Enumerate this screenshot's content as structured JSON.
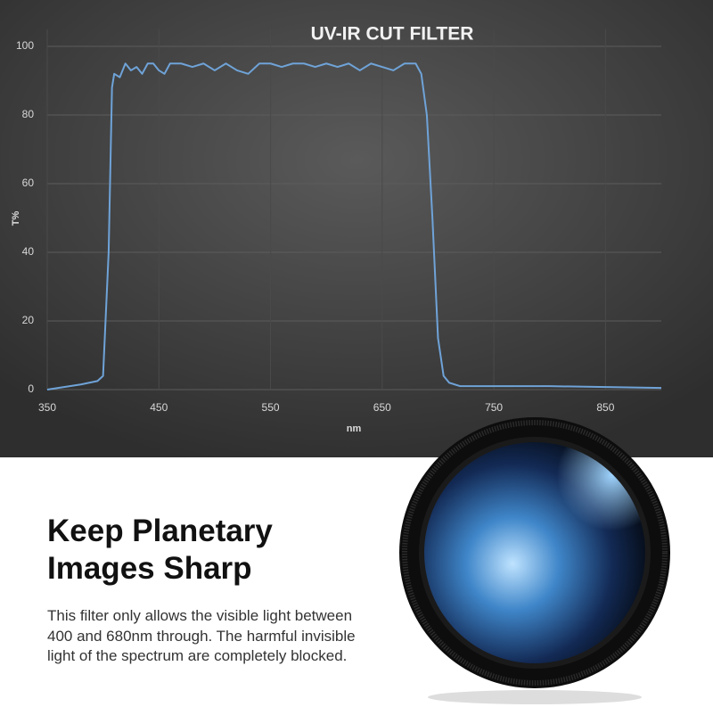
{
  "chart_data": {
    "type": "line",
    "title": "UV-IR CUT FILTER",
    "x_label": "nm",
    "y_label": "T%",
    "x": [
      350,
      380,
      395,
      400,
      405,
      408,
      410,
      415,
      420,
      425,
      430,
      435,
      440,
      445,
      450,
      455,
      460,
      470,
      480,
      490,
      500,
      510,
      520,
      530,
      540,
      550,
      560,
      570,
      580,
      590,
      600,
      610,
      620,
      630,
      640,
      650,
      660,
      670,
      680,
      685,
      690,
      695,
      700,
      705,
      710,
      720,
      750,
      800,
      900
    ],
    "series": [
      {
        "name": "T%",
        "color": "#6fa3d8",
        "values": [
          0,
          1.5,
          2.5,
          4,
          40,
          88,
          92,
          91,
          95,
          93,
          94,
          92,
          95,
          95,
          93,
          92,
          95,
          95,
          94,
          95,
          93,
          95,
          93,
          92,
          95,
          95,
          94,
          95,
          95,
          94,
          95,
          94,
          95,
          93,
          95,
          94,
          93,
          95,
          95,
          92,
          80,
          50,
          15,
          4,
          2,
          1,
          1,
          1,
          0.5
        ]
      }
    ],
    "xlim": [
      350,
      900
    ],
    "ylim": [
      0,
      105
    ],
    "xticks": [
      350,
      450,
      550,
      650,
      750,
      850
    ],
    "yticks": [
      0,
      20,
      40,
      60,
      80,
      100
    ],
    "grid": true
  },
  "heading": [
    "Keep Planetary",
    "Images Sharp"
  ],
  "body": [
    "This filter only allows the visible light between",
    "400 and 680nm through. The harmful invisible",
    "light of the spectrum are completely blocked."
  ]
}
